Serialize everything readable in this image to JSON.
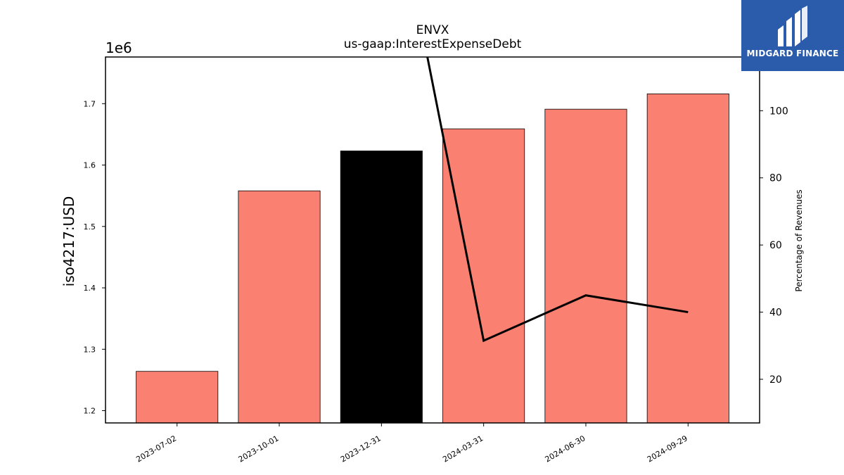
{
  "chart_data": {
    "type": "bar",
    "title": "ENVX",
    "subtitle": "us-gaap:InterestExpenseDebt",
    "categories": [
      "2023-07-02",
      "2023-10-01",
      "2023-12-31",
      "2024-03-31",
      "2024-06-30",
      "2024-09-29"
    ],
    "series": [
      {
        "axis": "left",
        "type": "bar",
        "values": [
          1264000,
          1558000,
          1623000,
          1659000,
          1691000,
          1716000
        ],
        "colors": [
          "#fa8072",
          "#fa8072",
          "#000000",
          "#fa8072",
          "#fa8072",
          "#fa8072"
        ]
      },
      {
        "axis": "right",
        "type": "line",
        "values": [
          null,
          null,
          185,
          31.5,
          45,
          40
        ],
        "color": "#000000"
      }
    ],
    "ylabel": "iso4217:USD",
    "y_offset_label": "1e6",
    "ylim": [
      1180000,
      1776000
    ],
    "yticks": [
      1200000,
      1300000,
      1400000,
      1500000,
      1600000,
      1700000
    ],
    "ytick_labels": [
      "1.2",
      "1.3",
      "1.4",
      "1.5",
      "1.6",
      "1.7"
    ],
    "y2label": "Percentage of Revenues",
    "y2lim": [
      7,
      116
    ],
    "y2ticks": [
      20,
      40,
      60,
      80,
      100
    ],
    "grid": false,
    "legend": "none"
  },
  "logo": {
    "text": "MIDGARD FINANCE",
    "color": "#2b5bab"
  }
}
